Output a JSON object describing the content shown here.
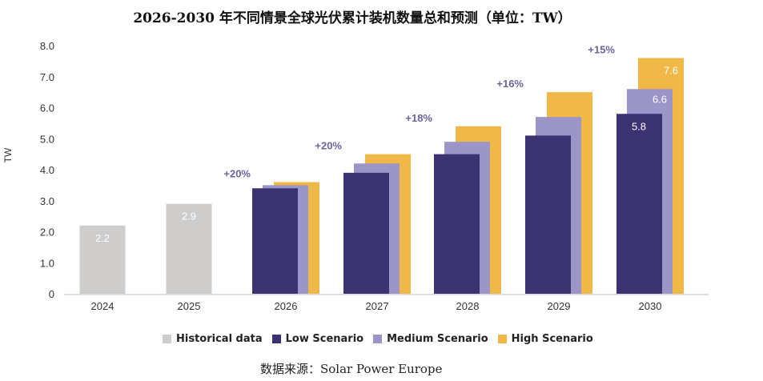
{
  "title": "2026-2030 年不同情景全球光伏累计装机数量总和预测（单位：TW）",
  "source": "数据来源：Solar Power Europe",
  "colors": {
    "historical": "#cfcdcb",
    "low": "#3b3272",
    "medium": "#9b95c8",
    "high": "#f0b847",
    "growth_text": "#6b639e"
  },
  "chart_data": {
    "type": "bar",
    "title": "2026-2030 年不同情景全球光伏累计装机数量总和预测（单位：TW）",
    "xlabel": "",
    "ylabel": "TW",
    "ylim": [
      0,
      8.0
    ],
    "yticks": [
      "0",
      "1.0",
      "2.0",
      "3.0",
      "4.0",
      "5.0",
      "6.0",
      "7.0",
      "8.0"
    ],
    "categories": [
      "2024",
      "2025",
      "2026",
      "2027",
      "2028",
      "2029",
      "2030"
    ],
    "series": [
      {
        "name": "Historical data",
        "values": [
          2.2,
          2.9,
          null,
          null,
          null,
          null,
          null
        ]
      },
      {
        "name": "Low Scenario",
        "values": [
          null,
          null,
          3.4,
          3.9,
          4.5,
          5.1,
          5.8
        ]
      },
      {
        "name": "Medium Scenario",
        "values": [
          null,
          null,
          3.5,
          4.2,
          4.9,
          5.7,
          6.6
        ]
      },
      {
        "name": "High Scenario",
        "values": [
          null,
          null,
          3.6,
          4.5,
          5.4,
          6.5,
          7.6
        ]
      }
    ],
    "data_labels": {
      "2024": "2.2",
      "2025": "2.9",
      "2030": [
        "5.8",
        "6.6",
        "7.6"
      ]
    },
    "growth_annotations": [
      "+20%",
      "+20%",
      "+18%",
      "+16%",
      "+15%"
    ],
    "legend": [
      "Historical data",
      "Low Scenario",
      "Medium Scenario",
      "High Scenario"
    ],
    "legend_position": "bottom",
    "grid": false
  }
}
